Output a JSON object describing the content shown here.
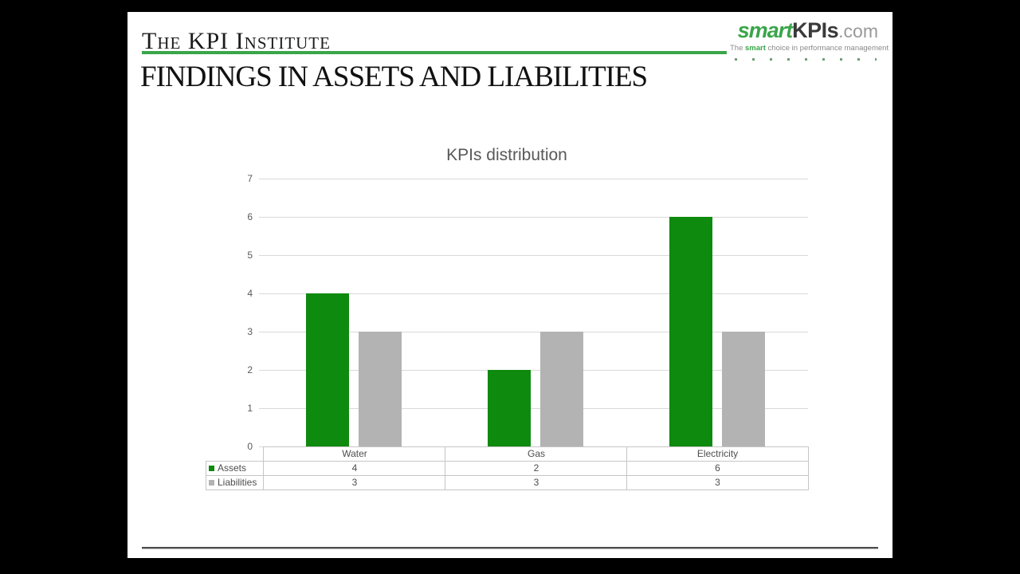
{
  "header": {
    "brand": "The KPI Institute",
    "title": "FINDINGS IN ASSETS AND LIABILITIES"
  },
  "logo": {
    "smart": "smart",
    "kpis": "KPIs",
    "domain": ".com",
    "tagline_pre": "The ",
    "tagline_bold": "smart",
    "tagline_post": " choice in performance management"
  },
  "chart_data": {
    "type": "bar",
    "title": "KPIs distribution",
    "categories": [
      "Water",
      "Gas",
      "Electricity"
    ],
    "series": [
      {
        "name": "Assets",
        "color": "#0e8a0e",
        "values": [
          4,
          2,
          6
        ]
      },
      {
        "name": "Liabilities",
        "color": "#b3b3b3",
        "values": [
          3,
          3,
          3
        ]
      }
    ],
    "ylim": [
      0,
      7
    ],
    "ytick_step": 1,
    "yticks": [
      "0",
      "1",
      "2",
      "3",
      "4",
      "5",
      "6",
      "7"
    ],
    "grid": "horizontal-gridlines-on",
    "legend_position": "table-left",
    "axis_label_color": "#595959",
    "gridline_color": "#d9d9d9",
    "table_border_color": "#c6c6c6"
  },
  "colors": {
    "accent_green": "#3aa54a",
    "frame_background": "#000000",
    "slide_background": "#ffffff"
  }
}
